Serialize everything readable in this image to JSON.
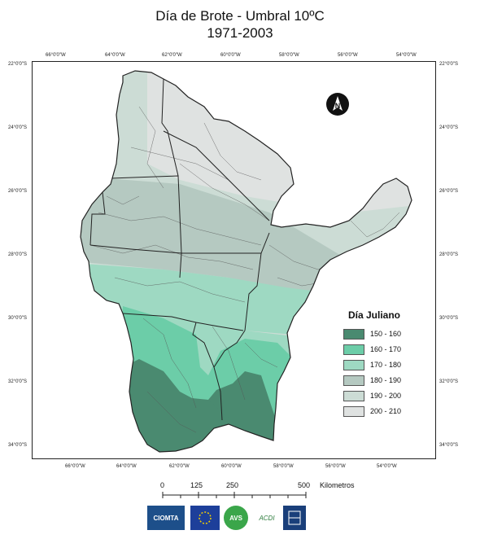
{
  "title": "Día de Brote - Umbral 10ºC",
  "subtitle": "1971-2003",
  "ticks": {
    "top": [
      "66°0'0\"W",
      "64°0'0\"W",
      "62°0'0\"W",
      "60°0'0\"W",
      "58°0'0\"W",
      "56°0'0\"W",
      "54°0'0\"W"
    ],
    "bottom": [
      "66°0'0\"W",
      "64°0'0\"W",
      "62°0'0\"W",
      "60°0'0\"W",
      "58°0'0\"W",
      "56°0'0\"W",
      "54°0'0\"W"
    ],
    "left": [
      "22°0'0\"S",
      "24°0'0\"S",
      "26°0'0\"S",
      "28°0'0\"S",
      "30°0'0\"S",
      "32°0'0\"S",
      "34°0'0\"S"
    ],
    "right": [
      "22°0'0\"S",
      "24°0'0\"S",
      "26°0'0\"S",
      "28°0'0\"S",
      "30°0'0\"S",
      "32°0'0\"S",
      "34°0'0\"S"
    ]
  },
  "legend": {
    "title": "Día Juliano",
    "items": [
      {
        "label": "150 - 160",
        "color": "#4a8a70"
      },
      {
        "label": "160 - 170",
        "color": "#6ccda8"
      },
      {
        "label": "170 - 180",
        "color": "#9ed9c2"
      },
      {
        "label": "180 - 190",
        "color": "#b5c9c1"
      },
      {
        "label": "190 - 200",
        "color": "#ccdcd5"
      },
      {
        "label": "200 - 210",
        "color": "#dfe2e1"
      }
    ]
  },
  "scalebar": {
    "labels": [
      "0",
      "125",
      "250",
      "500"
    ],
    "unit": "Kilometros"
  },
  "logos": [
    "CIOMTA",
    "AVS",
    "ACDI"
  ],
  "north_icon": "north-arrow-icon"
}
